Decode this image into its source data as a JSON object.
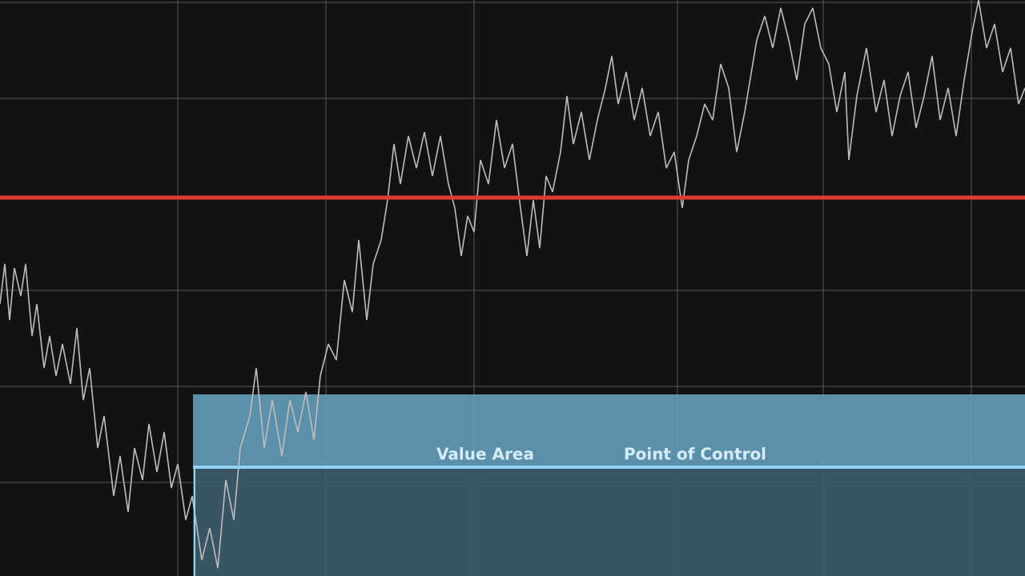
{
  "annotations": {
    "value_area": "Value Area",
    "point_of_control": "Point of Control"
  }
}
